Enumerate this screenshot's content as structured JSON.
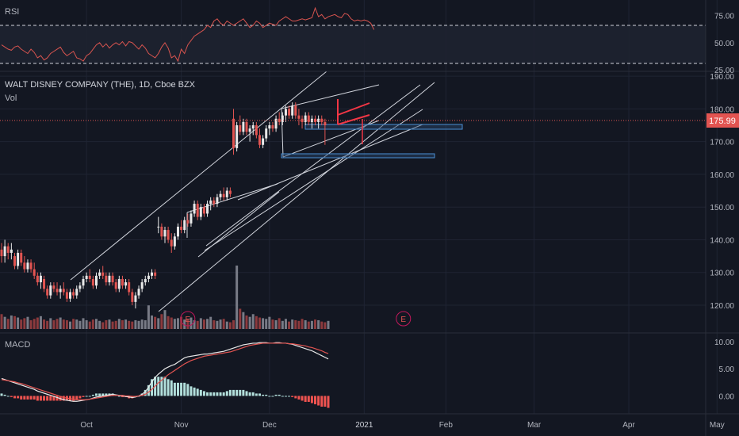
{
  "header": {
    "rsi_label": "RSI",
    "main_label": "WALT DISNEY COMPANY (THE), 1D, Cboe BZX",
    "vol_label": "Vol",
    "macd_label": "MACD"
  },
  "price_badge": "175.99",
  "earnings_marker": "E",
  "colors": {
    "background": "#131722",
    "up": "#e8e8e8",
    "down": "#e25451",
    "rsi_line": "#d8544f",
    "macd_line": "#e8e8e8",
    "signal_line": "#e25451",
    "hist_up": "#b2dfdb",
    "hist_down": "#ef5350",
    "box": "#4a8fd4",
    "grid": "#1f2433",
    "axis_text": "#b2b5be"
  },
  "chart_data": [
    {
      "type": "line",
      "title": "RSI",
      "ylim": [
        25,
        85
      ],
      "yticks": [
        "75.00",
        "50.00",
        "25.00"
      ],
      "bands": [
        70,
        30
      ],
      "x_range": [
        0,
        120
      ],
      "values": [
        48,
        46,
        44,
        43,
        46,
        47,
        44,
        42,
        40,
        44,
        41,
        36,
        38,
        34,
        36,
        40,
        42,
        44,
        46,
        41,
        38,
        40,
        42,
        36,
        35,
        33,
        38,
        40,
        44,
        48,
        50,
        46,
        49,
        45,
        48,
        50,
        48,
        51,
        47,
        51,
        50,
        47,
        44,
        48,
        45,
        40,
        38,
        36,
        40,
        46,
        50,
        45,
        36,
        38,
        33,
        44,
        40,
        48,
        52,
        56,
        58,
        60,
        62,
        66,
        64,
        70,
        72,
        68,
        66,
        70,
        68,
        66,
        68,
        70,
        72,
        68,
        64,
        66,
        70,
        68,
        64,
        66,
        68,
        67,
        66,
        70,
        72,
        74,
        72,
        70,
        70,
        71,
        72,
        71,
        72,
        73,
        82,
        74,
        76,
        72,
        74,
        75,
        76,
        74,
        73,
        77,
        76,
        72,
        70,
        71,
        70,
        71,
        70,
        68,
        62
      ]
    },
    {
      "type": "candlestick",
      "title": "WALT DISNEY COMPANY (THE), 1D, Cboe BZX",
      "ylim": [
        112,
        191
      ],
      "yticks": [
        "190.00",
        "180.00",
        "170.00",
        "160.00",
        "150.00",
        "140.00",
        "130.00",
        "120.00"
      ],
      "last_price": 175.99,
      "x_range": [
        0,
        120
      ],
      "ohlc": [
        [
          137,
          139,
          133,
          135
        ],
        [
          135,
          140,
          133,
          138
        ],
        [
          138,
          139,
          134,
          136
        ],
        [
          136,
          139,
          134,
          137
        ],
        [
          135,
          136,
          131,
          132
        ],
        [
          132,
          137,
          131,
          136
        ],
        [
          136,
          137,
          132,
          133
        ],
        [
          133,
          135,
          130,
          131
        ],
        [
          131,
          134,
          130,
          133
        ],
        [
          133,
          134,
          130,
          131
        ],
        [
          131,
          133,
          128,
          129
        ],
        [
          129,
          130,
          126,
          127
        ],
        [
          127,
          130,
          125,
          129
        ],
        [
          128,
          129,
          124,
          125
        ],
        [
          125,
          126,
          122,
          123
        ],
        [
          123,
          127,
          122,
          126
        ],
        [
          126,
          127,
          124,
          125
        ],
        [
          125,
          127,
          123,
          124
        ],
        [
          124,
          126,
          122,
          125
        ],
        [
          125,
          127,
          123,
          124
        ],
        [
          124,
          125,
          121,
          122
        ],
        [
          122,
          125,
          121,
          124
        ],
        [
          124,
          125,
          122,
          123
        ],
        [
          123,
          126,
          122,
          125
        ],
        [
          125,
          127,
          124,
          126
        ],
        [
          126,
          129,
          125,
          128
        ],
        [
          128,
          130,
          127,
          129
        ],
        [
          129,
          131,
          127,
          128
        ],
        [
          128,
          129,
          125,
          126
        ],
        [
          126,
          130,
          125,
          129
        ],
        [
          129,
          131,
          128,
          130
        ],
        [
          130,
          132,
          128,
          129
        ],
        [
          129,
          130,
          126,
          127
        ],
        [
          127,
          130,
          126,
          129
        ],
        [
          129,
          130,
          126,
          127
        ],
        [
          127,
          128,
          124,
          125
        ],
        [
          125,
          129,
          124,
          128
        ],
        [
          128,
          129,
          125,
          126
        ],
        [
          126,
          128,
          125,
          127
        ],
        [
          127,
          128,
          123,
          124
        ],
        [
          124,
          125,
          120,
          121
        ],
        [
          121,
          124,
          119,
          123
        ],
        [
          123,
          126,
          122,
          125
        ],
        [
          125,
          128,
          124,
          127
        ],
        [
          127,
          129,
          126,
          128
        ],
        [
          128,
          130,
          127,
          129
        ],
        [
          129,
          131,
          128,
          130
        ],
        [
          130,
          131,
          128,
          129
        ],
        [
          144,
          147,
          142,
          144
        ],
        [
          144,
          145,
          140,
          141
        ],
        [
          141,
          144,
          139,
          143
        ],
        [
          143,
          144,
          139,
          140
        ],
        [
          140,
          142,
          136,
          138
        ],
        [
          138,
          142,
          137,
          141
        ],
        [
          141,
          145,
          140,
          144
        ],
        [
          144,
          146,
          142,
          143
        ],
        [
          143,
          147,
          142,
          146
        ],
        [
          146,
          148,
          144,
          145
        ],
        [
          145,
          149,
          144,
          148
        ],
        [
          148,
          152,
          147,
          151
        ],
        [
          151,
          152,
          146,
          147
        ],
        [
          147,
          151,
          146,
          150
        ],
        [
          150,
          151,
          147,
          148
        ],
        [
          148,
          152,
          147,
          151
        ],
        [
          151,
          153,
          149,
          152
        ],
        [
          152,
          153,
          150,
          151
        ],
        [
          151,
          154,
          150,
          153
        ],
        [
          153,
          155,
          152,
          154
        ],
        [
          154,
          156,
          152,
          153
        ],
        [
          153,
          156,
          152,
          155
        ],
        [
          155,
          156,
          153,
          154
        ],
        [
          177,
          180,
          166,
          168
        ],
        [
          168,
          176,
          167,
          175
        ],
        [
          175,
          178,
          172,
          173
        ],
        [
          173,
          177,
          172,
          176
        ],
        [
          176,
          177,
          172,
          173
        ],
        [
          173,
          175,
          170,
          174
        ],
        [
          174,
          176,
          172,
          175
        ],
        [
          175,
          176,
          171,
          172
        ],
        [
          172,
          174,
          168,
          169
        ],
        [
          169,
          172,
          168,
          171
        ],
        [
          171,
          175,
          170,
          174
        ],
        [
          174,
          176,
          172,
          175
        ],
        [
          175,
          176,
          173,
          174
        ],
        [
          174,
          178,
          173,
          177
        ],
        [
          177,
          179,
          175,
          176
        ],
        [
          176,
          179,
          175,
          178
        ],
        [
          178,
          181,
          176,
          180
        ],
        [
          180,
          181,
          177,
          178
        ],
        [
          178,
          182,
          177,
          181
        ],
        [
          181,
          182,
          177,
          178
        ],
        [
          178,
          180,
          175,
          177
        ],
        [
          177,
          178,
          174,
          176
        ],
        [
          176,
          179,
          175,
          178
        ],
        [
          178,
          179,
          175,
          176
        ],
        [
          176,
          178,
          174,
          177
        ],
        [
          177,
          178,
          175,
          176
        ],
        [
          176,
          178,
          174,
          177
        ],
        [
          177,
          178,
          175,
          176
        ],
        [
          176,
          177,
          169,
          175
        ]
      ],
      "volume": [
        22,
        18,
        15,
        20,
        19,
        17,
        14,
        16,
        18,
        13,
        15,
        17,
        19,
        14,
        12,
        16,
        13,
        15,
        17,
        14,
        13,
        11,
        15,
        14,
        12,
        16,
        13,
        11,
        14,
        15,
        12,
        10,
        13,
        14,
        11,
        12,
        15,
        13,
        14,
        12,
        11,
        13,
        12,
        14,
        13,
        35,
        20,
        18,
        16,
        22,
        28,
        19,
        17,
        15,
        16,
        18,
        14,
        15,
        17,
        13,
        12,
        16,
        14,
        15,
        18,
        13,
        12,
        14,
        15,
        11,
        10,
        13,
        94,
        30,
        25,
        20,
        18,
        22,
        19,
        17,
        16,
        15,
        18,
        14,
        13,
        16,
        12,
        15,
        11,
        14,
        13,
        12,
        15,
        13,
        11,
        12,
        14,
        13,
        11,
        10,
        12
      ],
      "earnings": [
        57,
        123
      ]
    },
    {
      "type": "line",
      "title": "MACD",
      "ylim": [
        -3,
        11
      ],
      "yticks": [
        "10.00",
        "5.00",
        "0.00"
      ],
      "x_range": [
        0,
        120
      ],
      "macd": [
        3.2,
        3.0,
        2.8,
        2.6,
        2.4,
        2.2,
        2.0,
        1.8,
        1.6,
        1.4,
        1.2,
        0.9,
        0.7,
        0.5,
        0.3,
        0.1,
        -0.1,
        -0.3,
        -0.5,
        -0.7,
        -0.8,
        -0.9,
        -1.0,
        -1.0,
        -0.9,
        -0.8,
        -0.7,
        -0.6,
        -0.4,
        -0.2,
        -0.1,
        0.0,
        0.1,
        0.2,
        0.3,
        0.2,
        0.1,
        0.0,
        -0.1,
        -0.2,
        -0.3,
        -0.2,
        0.0,
        0.3,
        0.8,
        1.6,
        2.6,
        3.4,
        4.0,
        4.5,
        5.0,
        5.3,
        5.6,
        5.8,
        6.2,
        6.6,
        7.0,
        7.2,
        7.3,
        7.4,
        7.5,
        7.6,
        7.7,
        7.7,
        7.8,
        7.9,
        8.0,
        8.1,
        8.2,
        8.4,
        8.6,
        8.8,
        9.0,
        9.2,
        9.4,
        9.5,
        9.6,
        9.7,
        9.7,
        9.8,
        9.8,
        9.8,
        9.7,
        9.7,
        9.8,
        9.8,
        9.7,
        9.7,
        9.6,
        9.5,
        9.3,
        9.1,
        8.9,
        8.7,
        8.5,
        8.3,
        8.0,
        7.7,
        7.4,
        7.1,
        6.8
      ],
      "signal": [
        3.0,
        2.9,
        2.8,
        2.7,
        2.6,
        2.4,
        2.3,
        2.1,
        1.9,
        1.7,
        1.5,
        1.3,
        1.1,
        0.9,
        0.7,
        0.5,
        0.3,
        0.1,
        -0.1,
        -0.3,
        -0.4,
        -0.5,
        -0.6,
        -0.7,
        -0.7,
        -0.7,
        -0.7,
        -0.6,
        -0.5,
        -0.4,
        -0.3,
        -0.2,
        -0.1,
        0.0,
        0.1,
        0.1,
        0.1,
        0.1,
        0.0,
        0.0,
        -0.1,
        -0.1,
        0.0,
        0.1,
        0.3,
        0.7,
        1.2,
        1.8,
        2.4,
        2.9,
        3.4,
        3.9,
        4.3,
        4.7,
        5.1,
        5.5,
        5.9,
        6.2,
        6.5,
        6.7,
        6.9,
        7.1,
        7.3,
        7.4,
        7.5,
        7.6,
        7.7,
        7.8,
        7.9,
        8.0,
        8.1,
        8.3,
        8.5,
        8.7,
        8.9,
        9.1,
        9.3,
        9.4,
        9.5,
        9.6,
        9.7,
        9.7,
        9.7,
        9.7,
        9.7,
        9.7,
        9.7,
        9.7,
        9.6,
        9.6,
        9.5,
        9.4,
        9.3,
        9.2,
        9.0,
        8.9,
        8.7,
        8.5,
        8.3,
        8.0,
        7.8
      ]
    }
  ],
  "x_axis": {
    "ticks": [
      {
        "label": "Oct",
        "pos": 26
      },
      {
        "label": "Nov",
        "pos": 55
      },
      {
        "label": "Dec",
        "pos": 82
      },
      {
        "label": "2021",
        "pos": 111
      },
      {
        "label": "Feb",
        "pos": 136
      },
      {
        "label": "Mar",
        "pos": 163
      },
      {
        "label": "Apr",
        "pos": 192
      },
      {
        "label": "May",
        "pos": 219
      }
    ],
    "range": [
      0,
      232
    ]
  }
}
